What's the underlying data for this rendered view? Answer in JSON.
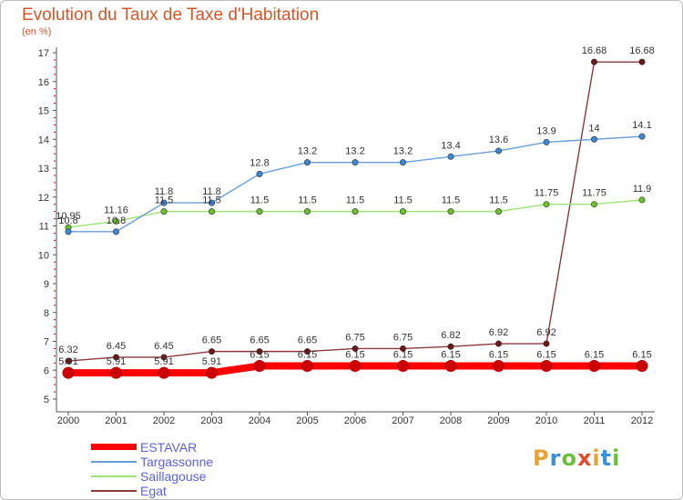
{
  "title": "Evolution du Taux de Taxe d'Habitation",
  "subtitle": "(en %)",
  "logo": {
    "text": "Proxiti",
    "colors": [
      "#e8a23a",
      "#3b8fd6",
      "#6cbf3c",
      "#e34a2a",
      "#e8a23a",
      "#3b8fd6",
      "#6cbf3c"
    ]
  },
  "chart_data": {
    "type": "line",
    "x": [
      "2000",
      "2001",
      "2002",
      "2003",
      "2004",
      "2005",
      "2006",
      "2007",
      "2008",
      "2009",
      "2010",
      "2011",
      "2012"
    ],
    "ylim": [
      5,
      17
    ],
    "yticks": [
      5,
      6,
      7,
      8,
      9,
      10,
      11,
      12,
      13,
      14,
      15,
      16,
      17
    ],
    "grid": false,
    "legend_position": "bottom-left",
    "series": [
      {
        "name": "ESTAVAR",
        "color": "#ff0000",
        "point_color": "#cc0000",
        "values": [
          5.91,
          5.91,
          5.91,
          5.91,
          6.15,
          6.15,
          6.15,
          6.15,
          6.15,
          6.15,
          6.15,
          6.15,
          6.15
        ],
        "labels": [
          "5.91",
          "5.91",
          "5.91",
          "5.91",
          "6.15",
          "6.15",
          "6.15",
          "6.15",
          "6.15",
          "6.15",
          "6.15",
          "6.15",
          "6.15"
        ]
      },
      {
        "name": "Targassonne",
        "color": "#6a9fd6",
        "point_color": "#3f86d0",
        "values": [
          10.8,
          10.8,
          11.8,
          11.8,
          12.8,
          13.2,
          13.2,
          13.2,
          13.4,
          13.6,
          13.9,
          14,
          14.1
        ],
        "labels": [
          "10.8",
          "10.8",
          "11.8",
          "11.8",
          "12.8",
          "13.2",
          "13.2",
          "13.2",
          "13.4",
          "13.6",
          "13.9",
          "14",
          "14.1"
        ]
      },
      {
        "name": "Saillagouse",
        "color": "#9ee07a",
        "point_color": "#6cc02c",
        "values": [
          10.95,
          11.16,
          11.5,
          11.5,
          11.5,
          11.5,
          11.5,
          11.5,
          11.5,
          11.5,
          11.75,
          11.75,
          11.9
        ],
        "labels": [
          "10.95",
          "11.16",
          "11.5",
          "11.5",
          "11.5",
          "11.5",
          "11.5",
          "11.5",
          "11.5",
          "11.5",
          "11.75",
          "11.75",
          "11.9"
        ]
      },
      {
        "name": "Egat",
        "color": "#8a3a3a",
        "point_color": "#6a1818",
        "values": [
          6.32,
          6.45,
          6.45,
          6.65,
          6.65,
          6.65,
          6.75,
          6.75,
          6.82,
          6.92,
          6.92,
          16.68,
          16.68
        ],
        "labels": [
          "6.32",
          "6.45",
          "6.45",
          "6.65",
          "6.65",
          "6.65",
          "6.75",
          "6.75",
          "6.82",
          "6.92",
          "6.92",
          "16.68",
          "16.68"
        ]
      }
    ]
  }
}
